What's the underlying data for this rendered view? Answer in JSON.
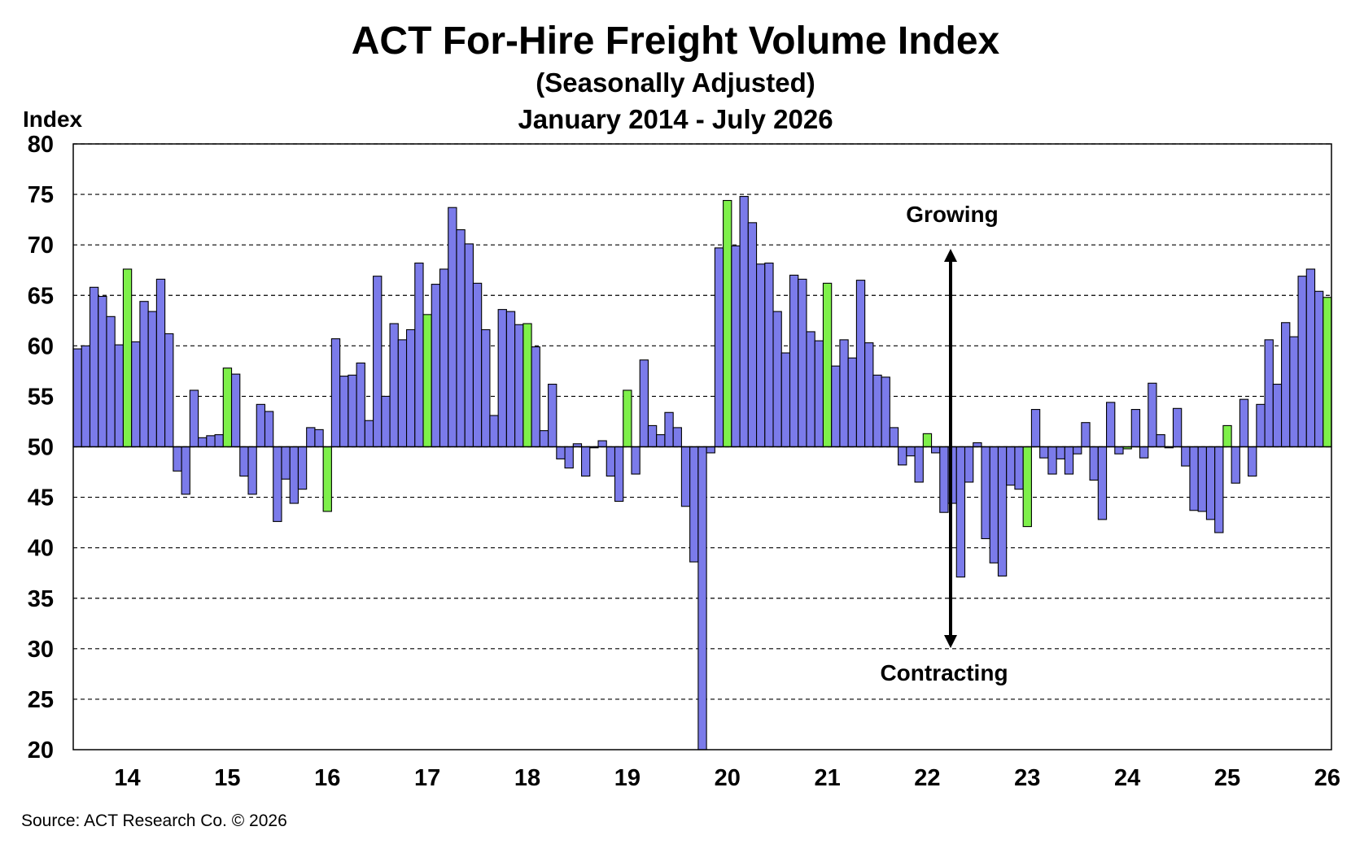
{
  "chart_data": {
    "type": "bar",
    "title": "ACT For-Hire Freight Volume Index",
    "subtitle": "(Seasonally Adjusted)",
    "period": "January 2014 - July 2026",
    "ylabel": "Index",
    "ylim": [
      20,
      80
    ],
    "yticks": [
      20,
      25,
      30,
      35,
      40,
      45,
      50,
      55,
      60,
      65,
      70,
      75,
      80
    ],
    "baseline": 50,
    "grid": true,
    "x_ticks": [
      "14",
      "15",
      "16",
      "17",
      "18",
      "19",
      "20",
      "21",
      "22",
      "23",
      "24",
      "25",
      "26"
    ],
    "annotations": {
      "up": "Growing",
      "down": "Contracting"
    },
    "source": "Source: ACT Research Co. © 2026",
    "colors": {
      "bar": "#7b7bea",
      "highlight": "#7ef04a",
      "edge": "#000000",
      "grid": "#000000"
    },
    "series": [
      {
        "values": [
          59.7,
          60.0,
          65.8,
          64.9,
          62.9,
          60.1,
          67.6,
          60.4,
          64.4,
          63.4,
          66.6,
          61.2,
          47.6,
          45.3,
          55.6,
          50.9,
          51.1,
          51.2,
          57.8,
          57.2,
          47.1,
          45.3,
          54.2,
          53.5,
          42.6,
          46.8,
          44.4,
          45.8,
          51.9,
          51.7,
          43.6,
          60.7,
          57.0,
          57.1,
          58.3,
          52.6,
          66.9,
          55.0,
          62.2,
          60.6,
          61.6,
          68.2,
          63.1,
          66.1,
          67.6,
          73.7,
          71.5,
          70.1,
          66.2,
          61.6,
          53.1,
          63.6,
          63.4,
          62.1,
          62.2,
          59.9,
          51.6,
          56.2,
          48.8,
          47.9,
          50.3,
          47.1,
          49.9,
          50.6,
          47.1,
          44.6,
          55.6,
          47.3,
          58.6,
          52.1,
          51.2,
          53.4,
          51.9,
          44.1,
          38.6,
          20.0,
          49.4,
          69.7,
          74.4,
          69.9,
          74.8,
          72.2,
          68.1,
          68.2,
          63.4,
          59.3,
          67.0,
          66.6,
          61.4,
          60.5,
          66.2,
          58.0,
          60.6,
          58.8,
          66.5,
          60.3,
          57.1,
          56.9,
          51.9,
          48.2,
          49.1,
          46.5,
          51.3,
          49.4,
          43.5,
          44.4,
          37.1,
          46.5,
          50.4,
          40.9,
          38.5,
          37.2,
          46.2,
          45.8,
          42.1,
          53.7,
          48.9,
          47.3,
          48.8,
          47.3,
          49.3,
          52.4,
          46.7,
          42.8,
          54.4,
          49.3,
          49.8,
          53.7,
          48.9,
          56.3,
          51.2,
          49.9,
          53.8,
          48.1,
          43.7,
          43.6,
          42.8,
          41.5,
          52.1,
          46.4,
          54.7,
          47.1,
          54.2,
          60.6,
          56.2,
          62.3,
          60.9,
          66.9,
          67.6,
          65.4,
          64.8
        ]
      }
    ],
    "highlight_indices": [
      6,
      18,
      30,
      42,
      54,
      66,
      78,
      90,
      102,
      114,
      126,
      138,
      150
    ]
  }
}
